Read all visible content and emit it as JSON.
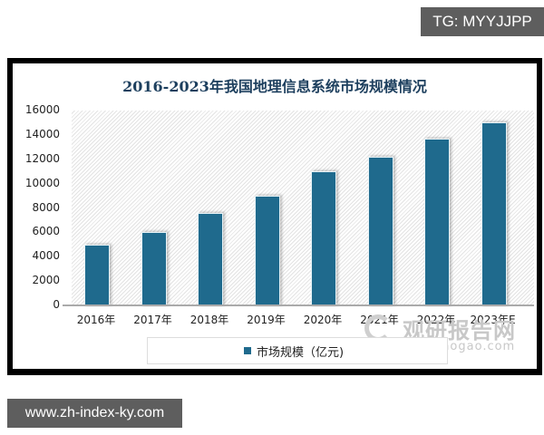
{
  "badges": {
    "top_right": "TG: MYYJJPP",
    "bottom_left": "www.zh-index-ky.com"
  },
  "watermark": {
    "cn": "观研报告网",
    "en": "chinabaogao.com"
  },
  "chart": {
    "title": "2016-2023年我国地理信息系统市场规模情况",
    "legend": "市场规模（亿元)",
    "yticks": [
      "16000",
      "14000",
      "12000",
      "10000",
      "8000",
      "6000",
      "4000",
      "2000",
      "0"
    ],
    "categories": [
      "2016年",
      "2017年",
      "2018年",
      "2019年",
      "2020年",
      "2021年",
      "2022年",
      "2023年E"
    ],
    "bar_color": "#1f6a8d"
  },
  "chart_data": {
    "type": "bar",
    "title": "2016-2023年我国地理信息系统市场规模情况",
    "categories": [
      "2016年",
      "2017年",
      "2018年",
      "2019年",
      "2020年",
      "2021年",
      "2022年",
      "2023年E"
    ],
    "series": [
      {
        "name": "市场规模（亿元)",
        "values": [
          5000,
          6000,
          7600,
          9000,
          11000,
          12200,
          13700,
          15000
        ]
      }
    ],
    "xlabel": "",
    "ylabel": "",
    "ylim": [
      0,
      16000
    ],
    "yticks": [
      0,
      2000,
      4000,
      6000,
      8000,
      10000,
      12000,
      14000,
      16000
    ],
    "grid": false,
    "legend_position": "bottom"
  }
}
